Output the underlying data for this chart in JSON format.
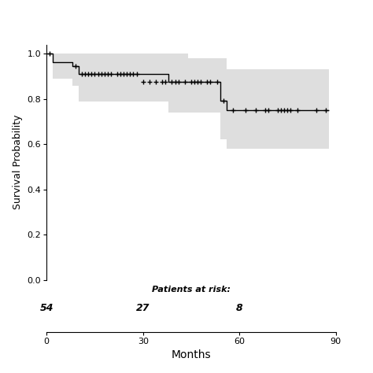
{
  "xlabel": "Months",
  "ylabel": "Survival Probability",
  "xlim": [
    0,
    90
  ],
  "ylim": [
    0.0,
    1.04
  ],
  "yticks": [
    0.0,
    0.2,
    0.4,
    0.6,
    0.8,
    1.0
  ],
  "xticks": [
    0,
    30,
    60,
    90
  ],
  "km_x": [
    0,
    2,
    2,
    8,
    8,
    10,
    10,
    38,
    38,
    44,
    44,
    54,
    54,
    56,
    56,
    88
  ],
  "km_y": [
    1.0,
    1.0,
    0.963,
    0.963,
    0.945,
    0.945,
    0.91,
    0.91,
    0.875,
    0.875,
    0.875,
    0.875,
    0.793,
    0.793,
    0.75,
    0.75
  ],
  "ci_upper_x": [
    0,
    2,
    2,
    10,
    10,
    38,
    38,
    44,
    44,
    54,
    54,
    56,
    56,
    88
  ],
  "ci_upper_y": [
    1.0,
    1.0,
    1.0,
    1.0,
    1.0,
    1.0,
    1.0,
    1.0,
    0.98,
    0.98,
    0.98,
    0.98,
    0.93,
    0.93
  ],
  "ci_lower_x": [
    0,
    2,
    2,
    8,
    8,
    10,
    10,
    38,
    38,
    44,
    44,
    54,
    54,
    56,
    56,
    88
  ],
  "ci_lower_y": [
    1.0,
    1.0,
    0.89,
    0.89,
    0.86,
    0.86,
    0.79,
    0.79,
    0.74,
    0.74,
    0.74,
    0.74,
    0.62,
    0.62,
    0.58,
    0.58
  ],
  "censor_times_0910": [
    11,
    12,
    13,
    14,
    15,
    16,
    17,
    18,
    19,
    20,
    22,
    23,
    24,
    25,
    26,
    27,
    28
  ],
  "censor_times_0910b": [
    9
  ],
  "censor_times_0875": [
    30,
    32,
    34,
    36,
    37,
    39,
    40,
    41,
    43,
    45,
    46,
    47,
    48,
    50,
    51,
    53
  ],
  "censor_times_0875b": [
    55
  ],
  "censor_times_0750": [
    58,
    62,
    65,
    68,
    69,
    72,
    73,
    74,
    75,
    76,
    78,
    84,
    87
  ],
  "censor_val_1": 1.0,
  "censor_val_0963": 0.963,
  "censor_val_0945": 0.945,
  "censor_val_0910": 0.91,
  "censor_val_0875": 0.875,
  "censor_val_0793": 0.793,
  "censor_val_0750": 0.75,
  "risk_times": [
    0,
    30,
    60
  ],
  "risk_counts": [
    "54",
    "27",
    "8"
  ],
  "risk_label": "Patients at risk:",
  "line_color": "#000000",
  "ci_color": "#dedede",
  "background_color": "#ffffff",
  "figsize": [
    4.74,
    4.74
  ],
  "dpi": 100
}
